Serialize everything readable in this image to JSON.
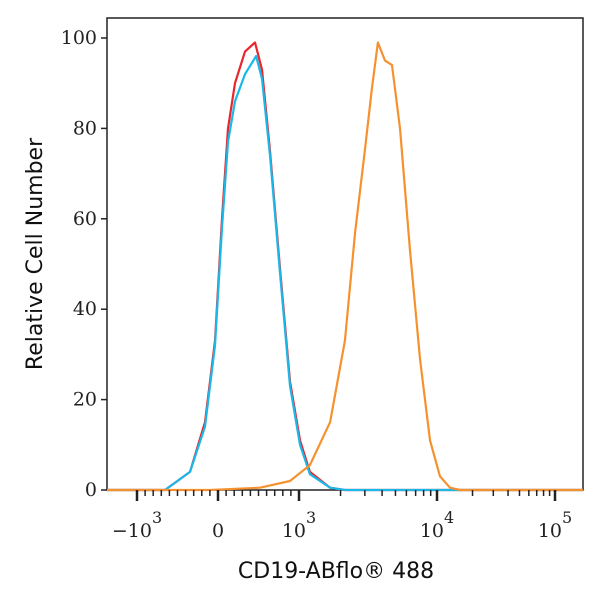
{
  "chart_data": {
    "type": "line",
    "title": "",
    "xlabel": "CD19-ABflo® 488",
    "ylabel": "Relative Cell Number",
    "x_scale": "biexponential",
    "xlim": [
      -1500,
      200000
    ],
    "ylim": [
      0,
      100
    ],
    "grid": false,
    "legend": "none",
    "x_ticks": [
      {
        "value": -1000,
        "base": "−10",
        "exp": "3"
      },
      {
        "value": 0,
        "base": "0",
        "exp": ""
      },
      {
        "value": 1000,
        "base": "10",
        "exp": "3"
      },
      {
        "value": 10000,
        "base": "10",
        "exp": "4"
      },
      {
        "value": 100000,
        "base": "10",
        "exp": "5"
      }
    ],
    "y_ticks": [
      0,
      20,
      40,
      60,
      80,
      100
    ],
    "series": [
      {
        "color": "#e8262b",
        "x": [
          -1500,
          -654,
          -346,
          -160,
          -37,
          49,
          123,
          210,
          333,
          457,
          543,
          642,
          765,
          889,
          1017,
          1200,
          1680,
          2150,
          200000
        ],
        "y": [
          0,
          0,
          4,
          15,
          33,
          60,
          80,
          90,
          97,
          99,
          93,
          75,
          49,
          24,
          11,
          4,
          0.5,
          0,
          0
        ]
      },
      {
        "color": "#1ab8e8",
        "x": [
          -1500,
          -654,
          -346,
          -160,
          -37,
          49,
          123,
          210,
          333,
          470,
          543,
          642,
          765,
          889,
          1017,
          1200,
          1680,
          2150,
          200000
        ],
        "y": [
          0,
          0,
          4,
          14,
          32,
          58,
          77,
          86,
          92,
          96,
          91,
          74,
          48,
          23,
          10,
          3.5,
          0.5,
          0,
          0
        ]
      },
      {
        "color": "#f5922f",
        "x": [
          -1500,
          -100,
          519,
          889,
          1200,
          1680,
          2150,
          2550,
          3000,
          3380,
          3730,
          4200,
          4720,
          5390,
          6370,
          7530,
          8900,
          10600,
          12900,
          15700,
          200000
        ],
        "y": [
          0,
          0,
          0.5,
          2,
          5.5,
          15,
          33,
          57,
          75,
          89,
          99,
          95,
          94,
          80,
          53,
          29,
          11,
          3,
          0.5,
          0,
          0
        ]
      }
    ]
  }
}
